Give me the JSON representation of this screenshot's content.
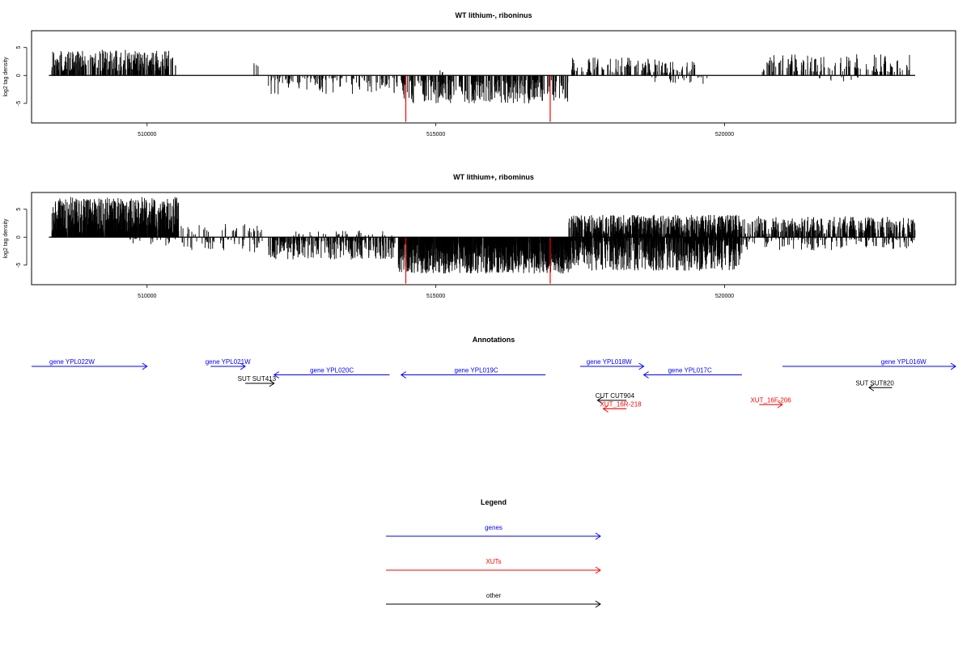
{
  "chart_data": [
    {
      "type": "bar",
      "title": "WT lithium-, riboninus",
      "ylabel": "log2 tag density",
      "xlim": [
        508000,
        524000
      ],
      "ylim": [
        -8.5,
        8
      ],
      "x_ticks": [
        510000,
        515000,
        520000
      ],
      "x_tick_labels": [
        "510000",
        "515000",
        "520000"
      ],
      "y_ticks": [
        -5,
        0,
        5
      ],
      "y_tick_labels": [
        "-5",
        "0",
        "5"
      ],
      "baseline_x_range": [
        508300,
        523300
      ],
      "highlight_color": "#ff0000",
      "highlights": [
        {
          "x": 514480,
          "y": -8.3
        },
        {
          "x": 516980,
          "y": -8.3
        }
      ],
      "segments": [
        {
          "x0": 508350,
          "x1": 510450,
          "sign": 1,
          "min": 0.8,
          "max": 4.6,
          "density": 4,
          "seed": 3
        },
        {
          "x0": 510450,
          "x1": 510500,
          "sign": 1,
          "min": 1.2,
          "max": 2.8,
          "density": 1,
          "seed": 5
        },
        {
          "x0": 511850,
          "x1": 511950,
          "sign": 1,
          "min": 1.5,
          "max": 2.5,
          "density": 1,
          "seed": 6
        },
        {
          "x0": 512100,
          "x1": 514350,
          "sign": -1,
          "min": 0.4,
          "max": 3.5,
          "density": 1.4,
          "seed": 7
        },
        {
          "x0": 514400,
          "x1": 517300,
          "sign": -1,
          "min": 0.8,
          "max": 5.0,
          "density": 3.2,
          "seed": 8
        },
        {
          "x0": 515050,
          "x1": 515150,
          "sign": 1,
          "min": 0.5,
          "max": 1.2,
          "density": 1,
          "seed": 9
        },
        {
          "x0": 517300,
          "x1": 519500,
          "sign": 1,
          "min": 0.5,
          "max": 3.2,
          "density": 1.8,
          "seed": 10
        },
        {
          "x0": 518700,
          "x1": 519800,
          "sign": -1,
          "min": 0.3,
          "max": 1.6,
          "density": 0.5,
          "seed": 11
        },
        {
          "x0": 520650,
          "x1": 523250,
          "sign": 1,
          "min": 0.6,
          "max": 3.8,
          "density": 1.6,
          "seed": 12
        },
        {
          "x0": 521600,
          "x1": 522400,
          "sign": -1,
          "min": 0.3,
          "max": 1.2,
          "density": 0.3,
          "seed": 13
        }
      ]
    },
    {
      "type": "bar",
      "title": "WT lithium+, ribominus",
      "ylabel": "log2 tag density",
      "xlim": [
        508000,
        524000
      ],
      "ylim": [
        -8.5,
        8
      ],
      "x_ticks": [
        510000,
        515000,
        520000
      ],
      "x_tick_labels": [
        "510000",
        "515000",
        "520000"
      ],
      "y_ticks": [
        -5,
        0,
        5
      ],
      "y_tick_labels": [
        "-5",
        "0",
        "5"
      ],
      "baseline_x_range": [
        508300,
        523300
      ],
      "highlight_color": "#ff0000",
      "highlights": [
        {
          "x": 514480,
          "y": -8.3
        },
        {
          "x": 516980,
          "y": -8.3
        }
      ],
      "segments": [
        {
          "x0": 508350,
          "x1": 510550,
          "sign": 1,
          "min": 0.8,
          "max": 7.2,
          "density": 9,
          "seed": 21
        },
        {
          "x0": 509700,
          "x1": 510550,
          "sign": -1,
          "min": 0.3,
          "max": 1.5,
          "density": 0.6,
          "seed": 22
        },
        {
          "x0": 510550,
          "x1": 512000,
          "sign": 1,
          "min": 0.5,
          "max": 2.5,
          "density": 0.7,
          "seed": 23
        },
        {
          "x0": 510550,
          "x1": 512000,
          "sign": -1,
          "min": 0.4,
          "max": 2.8,
          "density": 0.9,
          "seed": 24
        },
        {
          "x0": 512100,
          "x1": 514300,
          "sign": -1,
          "min": 0.5,
          "max": 4.0,
          "density": 3.5,
          "seed": 25
        },
        {
          "x0": 512500,
          "x1": 514300,
          "sign": 1,
          "min": 0.3,
          "max": 1.2,
          "density": 0.5,
          "seed": 26
        },
        {
          "x0": 514350,
          "x1": 517300,
          "sign": -1,
          "min": 1.0,
          "max": 6.5,
          "density": 10,
          "seed": 27
        },
        {
          "x0": 517300,
          "x1": 520300,
          "sign": 1,
          "min": 0.5,
          "max": 4.0,
          "density": 7,
          "seed": 28
        },
        {
          "x0": 517300,
          "x1": 520300,
          "sign": -1,
          "min": 0.5,
          "max": 6.0,
          "density": 7,
          "seed": 29
        },
        {
          "x0": 520300,
          "x1": 523300,
          "sign": 1,
          "min": 0.5,
          "max": 3.8,
          "density": 3.5,
          "seed": 30
        },
        {
          "x0": 520300,
          "x1": 523300,
          "sign": -1,
          "min": 0.3,
          "max": 2.4,
          "density": 1.2,
          "seed": 31
        }
      ]
    }
  ],
  "annotations": {
    "title": "Annotations",
    "xlim": [
      508000,
      524000
    ],
    "features": [
      {
        "label": "gene YPL022W",
        "start": 508000,
        "end": 510000,
        "dir": "right",
        "row": 0,
        "color": "#0000ff",
        "label_x": 508700
      },
      {
        "label": "gene YPL021W",
        "start": 511100,
        "end": 511700,
        "dir": "right",
        "row": 0,
        "color": "#0000ff",
        "label_x": 511400
      },
      {
        "label": "gene YPL020C",
        "start": 512200,
        "end": 514200,
        "dir": "left",
        "row": 1,
        "color": "#0000ff",
        "label_x": 513200
      },
      {
        "label": "gene YPL019C",
        "start": 514400,
        "end": 516900,
        "dir": "left",
        "row": 1,
        "color": "#0000ff",
        "label_x": 515700
      },
      {
        "label": "gene YPL018W",
        "start": 517500,
        "end": 518600,
        "dir": "right",
        "row": 0,
        "color": "#0000ff",
        "label_x": 518000
      },
      {
        "label": "gene YPL017C",
        "start": 518600,
        "end": 520300,
        "dir": "left",
        "row": 1,
        "color": "#0000ff",
        "label_x": 519400
      },
      {
        "label": "gene YPL016W",
        "start": 521000,
        "end": 524000,
        "dir": "right",
        "row": 0,
        "color": "#0000ff",
        "label_x": 523100
      },
      {
        "label": "SUT SUT413",
        "start": 511700,
        "end": 512200,
        "dir": "right",
        "row": 2,
        "color": "#000000",
        "label_x": 511900
      },
      {
        "label": "SUT SUT820",
        "start": 522500,
        "end": 522900,
        "dir": "left",
        "row": 2.5,
        "color": "#000000",
        "label_x": 522600
      },
      {
        "label": "CUT CUT904",
        "start": 517800,
        "end": 518300,
        "dir": "left",
        "row": 4,
        "color": "#000000",
        "label_x": 518100
      },
      {
        "label": "XUT_16R-218",
        "start": 517900,
        "end": 518300,
        "dir": "left",
        "row": 5,
        "color": "#ff0000",
        "label_x": 518200
      },
      {
        "label": "XUT_16F-206",
        "start": 520600,
        "end": 521000,
        "dir": "right",
        "row": 4.5,
        "color": "#ff0000",
        "label_x": 520800
      }
    ]
  },
  "legend": {
    "title": "Legend",
    "items": [
      {
        "label": "genes",
        "color": "#0000ff"
      },
      {
        "label": "XUTs",
        "color": "#ff0000"
      },
      {
        "label": "other",
        "color": "#000000"
      }
    ]
  }
}
